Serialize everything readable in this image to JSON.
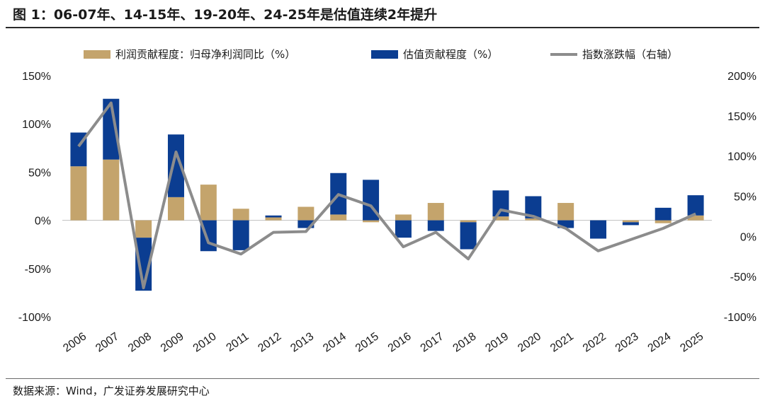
{
  "title": "图 1：06-07年、14-15年、19-20年、24-25年是估值连续2年提升",
  "source": "数据来源：Wind，广发证券发展研究中心",
  "colors": {
    "earnings": "#C4A46C",
    "valuation": "#0B3D91",
    "index": "#8C8C8C"
  },
  "chart_data": {
    "type": "bar",
    "stacked": true,
    "categories": [
      "2006",
      "2007",
      "2008",
      "2009",
      "2010",
      "2011",
      "2012",
      "2013",
      "2014",
      "2015",
      "2016",
      "2017",
      "2018",
      "2019",
      "2020",
      "2021",
      "2022",
      "2023",
      "2024",
      "2025"
    ],
    "series": [
      {
        "name": "利润贡献程度：归母净利润同比（%）",
        "axis": "left",
        "kind": "bar",
        "color": "#C4A46C",
        "values": [
          56,
          63,
          -18,
          24,
          37,
          12,
          3,
          14,
          6,
          -2,
          6,
          18,
          -2,
          4,
          2,
          18,
          0,
          -2,
          -3,
          5
        ]
      },
      {
        "name": "估值贡献程度（%）",
        "axis": "left",
        "kind": "bar",
        "color": "#0B3D91",
        "values": [
          35,
          63,
          -55,
          65,
          -32,
          -31,
          2,
          -8,
          43,
          42,
          -18,
          -11,
          -28,
          27,
          23,
          -8,
          -19,
          -3,
          13,
          21
        ]
      },
      {
        "name": "指数涨跌幅（右轴）",
        "axis": "right",
        "kind": "line",
        "color": "#8C8C8C",
        "values": [
          112,
          166,
          -64,
          105,
          -8,
          -22,
          5,
          6,
          52,
          38,
          -13,
          5,
          -28,
          33,
          25,
          10,
          -18,
          -4,
          10,
          28
        ]
      }
    ],
    "left_axis": {
      "min": -100,
      "max": 150,
      "ticks": [
        "150%",
        "100%",
        "50%",
        "0%",
        "-50%",
        "-100%"
      ],
      "tick_values": [
        150,
        100,
        50,
        0,
        -50,
        -100
      ]
    },
    "right_axis": {
      "min": -100,
      "max": 200,
      "ticks": [
        "200%",
        "150%",
        "100%",
        "50%",
        "0%",
        "-50%",
        "-100%"
      ],
      "tick_values": [
        200,
        150,
        100,
        50,
        0,
        -50,
        -100
      ]
    },
    "legend_position": "top",
    "grid": false
  }
}
